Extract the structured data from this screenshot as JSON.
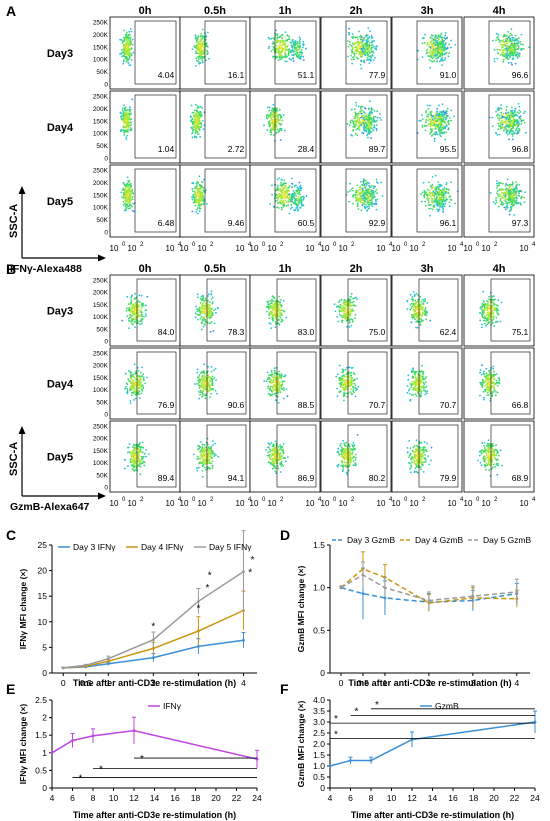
{
  "panels": {
    "A": {
      "letter": "A",
      "timepoints": [
        "0h",
        "0.5h",
        "1h",
        "2h",
        "3h",
        "4h"
      ],
      "rows": [
        {
          "label": "Day3",
          "values": [
            "4.04",
            "16.1",
            "51.1",
            "77.9",
            "91.0",
            "96.6"
          ]
        },
        {
          "label": "Day4",
          "values": [
            "1.04",
            "2.72",
            "28.4",
            "89.7",
            "95.5",
            "96.8"
          ]
        },
        {
          "label": "Day5",
          "values": [
            "6.48",
            "9.46",
            "60.5",
            "92.9",
            "96.1",
            "97.3"
          ]
        }
      ],
      "y_ticks": [
        "250K",
        "200K",
        "150K",
        "100K",
        "50K",
        "0"
      ],
      "ylabel": "SSC-A",
      "xlabel": "IFNγ-Alexa488"
    },
    "B": {
      "letter": "B",
      "timepoints": [
        "0h",
        "0.5h",
        "1h",
        "2h",
        "3h",
        "4h"
      ],
      "rows": [
        {
          "label": "Day3",
          "values": [
            "84.0",
            "78.3",
            "83.0",
            "75.0",
            "62.4",
            "75.1"
          ]
        },
        {
          "label": "Day4",
          "values": [
            "76.9",
            "90.6",
            "88.5",
            "70.7",
            "70.7",
            "66.8"
          ]
        },
        {
          "label": "Day5",
          "values": [
            "89.4",
            "94.1",
            "86.9",
            "80.2",
            "79.9",
            "68.9"
          ]
        }
      ],
      "y_ticks": [
        "250K",
        "200K",
        "150K",
        "100K",
        "50K",
        "0"
      ],
      "ylabel": "SSC-A",
      "xlabel": "GzmB-Alexa647"
    }
  },
  "colors": {
    "day3": "#3a8fd6",
    "day4": "#c9950f",
    "day5": "#9a9a9a",
    "ifng_e": "#c044e0",
    "gzmb_f": "#3a8fd6"
  },
  "chart_data": [
    {
      "panel": "C",
      "type": "line",
      "ylabel": "IFNγ MFI change (×)",
      "xlabel": "Time after anti-CD3e re-stimulation (h)",
      "x": [
        0,
        0.5,
        1,
        2,
        3,
        4
      ],
      "xticks": [
        "0",
        "0.5",
        "1",
        "2",
        "3",
        "4"
      ],
      "yticks": [
        "0",
        "5",
        "10",
        "15",
        "20",
        "25"
      ],
      "ylim": [
        0,
        25
      ],
      "series": [
        {
          "name": "Day 3 IFNγ",
          "color": "#3a8fd6",
          "values": [
            1,
            1.2,
            1.8,
            3,
            5.2,
            6.4
          ],
          "err": [
            0.1,
            0.2,
            0.3,
            0.8,
            1.5,
            1.5
          ]
        },
        {
          "name": "Day 4 IFNγ",
          "color": "#c9950f",
          "values": [
            1,
            1.3,
            2.3,
            4.8,
            8.2,
            12.2
          ],
          "err": [
            0.1,
            0.2,
            0.4,
            1.2,
            2.8,
            3.8
          ]
        },
        {
          "name": "Day 5 IFNγ",
          "color": "#9a9a9a",
          "values": [
            1,
            1.5,
            2.8,
            6.5,
            14,
            19.8
          ],
          "err": [
            0.1,
            0.2,
            0.5,
            1.5,
            2.5,
            8
          ]
        }
      ],
      "star_label": "*"
    },
    {
      "panel": "D",
      "type": "line",
      "ylabel": "GzmB MFI change (×)",
      "xlabel": "Time after anti-CD3e re-stimulation (h)",
      "x": [
        0,
        0.5,
        1,
        2,
        3,
        4
      ],
      "xticks": [
        "0",
        "0.5",
        "1",
        "2",
        "3",
        "4"
      ],
      "yticks": [
        "0",
        "0.5",
        "1.0",
        "1.5"
      ],
      "ylim": [
        0,
        1.5
      ],
      "series": [
        {
          "name": "Day 3 GzmB",
          "color": "#3a8fd6",
          "values": [
            1.0,
            0.93,
            0.88,
            0.83,
            0.85,
            0.93
          ],
          "err": [
            0.02,
            0.3,
            0.2,
            0.1,
            0.12,
            0.12
          ]
        },
        {
          "name": "Day 4 GzmB",
          "color": "#c9950f",
          "values": [
            1.0,
            1.22,
            1.12,
            0.82,
            0.88,
            0.87
          ],
          "err": [
            0.02,
            0.2,
            0.15,
            0.1,
            0.12,
            0.1
          ]
        },
        {
          "name": "Day 5 GzmB",
          "color": "#9a9a9a",
          "values": [
            1.0,
            1.15,
            1.0,
            0.85,
            0.9,
            0.95
          ],
          "err": [
            0.02,
            0.15,
            0.12,
            0.1,
            0.12,
            0.15
          ]
        }
      ]
    },
    {
      "panel": "E",
      "type": "line",
      "ylabel": "IFNγ MFI change (×)",
      "xlabel": "Time after anti-CD3e re-stimulation (h)",
      "x": [
        4,
        6,
        8,
        12,
        24
      ],
      "xticks": [
        "4",
        "6",
        "8",
        "10",
        "12",
        "14",
        "16",
        "18",
        "20",
        "22",
        "24"
      ],
      "yticks": [
        "0",
        "0.5",
        "1",
        "1.5",
        "2",
        "2.5"
      ],
      "ylim": [
        0,
        2.5
      ],
      "series": [
        {
          "name": "IFNγ",
          "color": "#c044e0",
          "values": [
            1.0,
            1.35,
            1.48,
            1.63,
            0.82
          ],
          "err": [
            0.0,
            0.2,
            0.2,
            0.38,
            0.25
          ]
        }
      ],
      "star_label": "*"
    },
    {
      "panel": "F",
      "type": "line",
      "ylabel": "GzmB MFI change (×)",
      "xlabel": "Time after anti-CD3e re-stimulation (h)",
      "x": [
        4,
        6,
        8,
        12,
        24
      ],
      "xticks": [
        "4",
        "6",
        "8",
        "10",
        "12",
        "14",
        "16",
        "18",
        "20",
        "22",
        "24"
      ],
      "yticks": [
        "0",
        "0.5",
        "1.0",
        "1.5",
        "2.0",
        "2.5",
        "3.0",
        "3.5",
        "4.0"
      ],
      "ylim": [
        0,
        4
      ],
      "series": [
        {
          "name": "GzmB",
          "color": "#3a8fd6",
          "values": [
            1.0,
            1.25,
            1.25,
            2.2,
            3.0
          ],
          "err": [
            0.0,
            0.15,
            0.15,
            0.35,
            0.5
          ]
        }
      ],
      "star_label": "*"
    }
  ]
}
